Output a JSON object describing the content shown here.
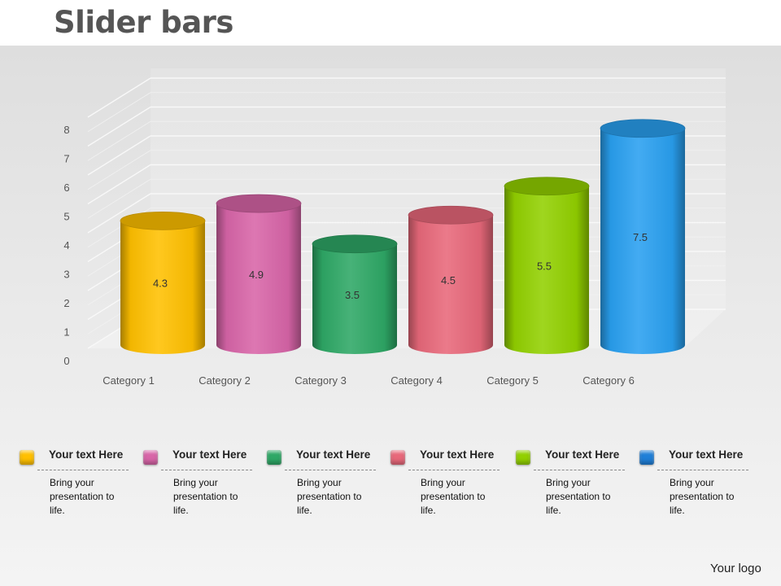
{
  "slide": {
    "title": "Slider bars",
    "logo_text": "Your logo"
  },
  "chart_data": {
    "type": "bar",
    "style": "3d-cylinder",
    "categories": [
      "Category 1",
      "Category 2",
      "Category 3",
      "Category 4",
      "Category 5",
      "Category 6"
    ],
    "values": [
      4.3,
      4.9,
      3.5,
      4.5,
      5.5,
      7.5
    ],
    "value_labels": [
      "4.3",
      "4.9",
      "3.5",
      "4.5",
      "5.5",
      "7.5"
    ],
    "colors": [
      "#ffc000",
      "#d865a8",
      "#2ea866",
      "#e8687a",
      "#92d000",
      "#29a0f0"
    ],
    "ylim": [
      0,
      8
    ],
    "yticks": [
      "0",
      "1",
      "2",
      "3",
      "4",
      "5",
      "6",
      "7",
      "8"
    ],
    "grid": true,
    "title": "",
    "xlabel": "",
    "ylabel": ""
  },
  "legend": {
    "items": [
      {
        "heading": "Your text Here",
        "description": "Bring your presentation to life.",
        "color": "#ffc000"
      },
      {
        "heading": "Your text Here",
        "description": "Bring your presentation to life.",
        "color": "#d865a8"
      },
      {
        "heading": "Your text Here",
        "description": "Bring your presentation to life.",
        "color": "#2ea866"
      },
      {
        "heading": "Your text Here",
        "description": "Bring your presentation to life.",
        "color": "#e8687a"
      },
      {
        "heading": "Your text Here",
        "description": "Bring your presentation to life.",
        "color": "#92d000"
      },
      {
        "heading": "Your text Here",
        "description": "Bring your presentation to life.",
        "color": "#1f7fd8"
      }
    ]
  }
}
